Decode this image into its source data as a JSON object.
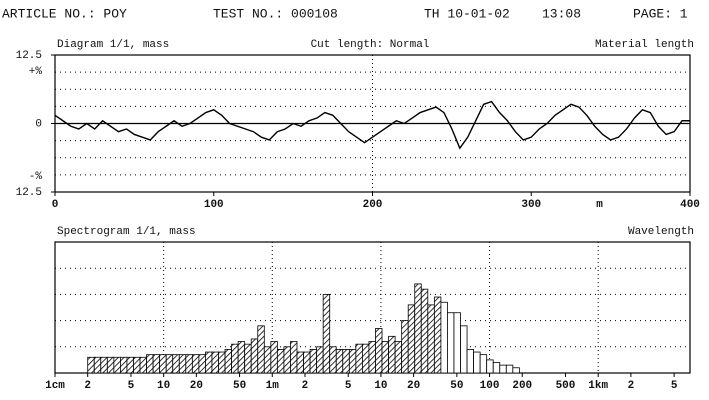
{
  "header": {
    "article": "ARTICLE NO.: POY",
    "test": "TEST NO.: 000108",
    "date": "TH 10-01-02",
    "time": "13:08",
    "page": "PAGE: 1"
  },
  "chart_data": [
    {
      "type": "line",
      "title": "Diagram 1/1, mass",
      "subtitle": "Cut length: Normal",
      "xlabel": "Material length",
      "xunit": "m",
      "ylabel_pos": "+%",
      "ylabel_neg": "-%",
      "color": "#000",
      "x": [
        0,
        5,
        10,
        15,
        20,
        25,
        30,
        35,
        40,
        45,
        50,
        55,
        60,
        65,
        70,
        75,
        80,
        85,
        90,
        95,
        100,
        105,
        110,
        115,
        120,
        125,
        130,
        135,
        140,
        145,
        150,
        155,
        160,
        165,
        170,
        175,
        180,
        185,
        190,
        195,
        200,
        205,
        210,
        215,
        220,
        225,
        230,
        235,
        240,
        245,
        250,
        255,
        260,
        265,
        270,
        275,
        280,
        285,
        290,
        295,
        300,
        305,
        310,
        315,
        320,
        325,
        330,
        335,
        340,
        345,
        350,
        355,
        360,
        365,
        370,
        375,
        380,
        385,
        390,
        395,
        400
      ],
      "values": [
        1.5,
        0.5,
        -0.5,
        -1,
        0,
        -1,
        0.5,
        -0.5,
        -1.5,
        -1,
        -2,
        -2.5,
        -3,
        -1.5,
        -0.5,
        0.5,
        -0.5,
        0,
        1,
        2,
        2.5,
        1.5,
        0,
        -0.5,
        -1,
        -1.5,
        -2.5,
        -3,
        -1.5,
        -1,
        0,
        -0.5,
        0.5,
        1,
        2,
        1.5,
        0,
        -1.5,
        -2.5,
        -3.5,
        -2.5,
        -1.5,
        -0.5,
        0.5,
        0,
        1,
        2,
        2.5,
        3,
        2,
        -1,
        -4.5,
        -2.5,
        0.5,
        3.5,
        4,
        2,
        0.5,
        -1.5,
        -3,
        -2.5,
        -1,
        0,
        1.5,
        2.5,
        3.5,
        3,
        1.5,
        -0.5,
        -2,
        -3,
        -2.5,
        -1,
        1,
        2.5,
        2,
        -0.5,
        -2,
        -1.5,
        0.5,
        0.5
      ],
      "xlim": [
        0,
        400
      ],
      "xticks": [
        0,
        100,
        200,
        300,
        400
      ],
      "xunit_pos": 343,
      "ylim": [
        -12.5,
        12.5
      ],
      "yticks": [
        12.5,
        0,
        {
          "value": -12.5,
          "label": "12.5"
        }
      ],
      "xgrid": [
        200
      ],
      "ygrid": [
        -9.375,
        -6.25,
        -3.125,
        3.125,
        6.25,
        9.375
      ],
      "zero_line": true
    },
    {
      "type": "histogram",
      "title": "Spectrogram 1/1, mass",
      "xlabel": "Wavelength",
      "xscale": "log",
      "color": "#000",
      "bins": [
        0.02,
        0.02297,
        0.02639,
        0.03031,
        0.03482,
        0.04,
        0.04595,
        0.05278,
        0.06063,
        0.06964,
        0.08,
        0.0919,
        0.1056,
        0.1213,
        0.1393,
        0.16,
        0.1838,
        0.2111,
        0.2425,
        0.2786,
        0.32,
        0.3676,
        0.4222,
        0.485,
        0.5571,
        0.64,
        0.7352,
        0.8445,
        0.9701,
        1.114,
        1.28,
        1.47,
        1.689,
        1.94,
        2.229,
        2.56,
        2.941,
        3.378,
        3.88,
        4.457,
        5.12,
        5.881,
        6.756,
        7.76,
        8.914,
        10.24,
        11.76,
        13.51,
        15.52,
        17.83,
        20.48,
        23.52,
        27.02,
        31.04,
        35.66,
        40.96,
        47.05,
        54.05,
        62.08,
        71.31,
        81.92,
        94.1,
        108.1,
        124.2,
        142.6,
        163.8,
        188.2
      ],
      "series": [
        {
          "pattern": "hatch",
          "values": [
            0.6,
            0.6,
            0.6,
            0.6,
            0.6,
            0.6,
            0.6,
            0.6,
            0.6,
            0.7,
            0.7,
            0.7,
            0.7,
            0.7,
            0.7,
            0.7,
            0.7,
            0.7,
            0.8,
            0.8,
            0.8,
            0.9,
            1.1,
            1.2,
            1.1,
            1.3,
            1.8,
            1.0,
            1.2,
            0.9,
            1.0,
            1.2,
            0.8,
            0.8,
            0.9,
            1.0,
            3.0,
            1.0,
            0.9,
            0.9,
            0.9,
            1.1,
            1.1,
            1.2,
            1.7,
            1.2,
            1.4,
            1.2,
            2.0,
            2.6,
            3.4,
            3.2,
            2.6,
            2.9,
            null,
            null,
            null,
            null,
            null,
            null,
            null,
            null,
            null,
            null,
            null,
            null
          ]
        },
        {
          "pattern": "none",
          "values": [
            null,
            null,
            null,
            null,
            null,
            null,
            null,
            null,
            null,
            null,
            null,
            null,
            null,
            null,
            null,
            null,
            null,
            null,
            null,
            null,
            null,
            null,
            null,
            null,
            null,
            null,
            null,
            null,
            null,
            null,
            null,
            null,
            null,
            null,
            null,
            null,
            null,
            null,
            null,
            null,
            null,
            null,
            null,
            null,
            null,
            null,
            null,
            null,
            null,
            null,
            null,
            null,
            null,
            null,
            2.7,
            2.3,
            2.3,
            1.8,
            0.9,
            0.8,
            0.7,
            0.5,
            0.4,
            0.3,
            0.3,
            0.2
          ]
        }
      ],
      "xlim": [
        0.01,
        7000
      ],
      "xticks": [
        {
          "value": 0.01,
          "label": "1cm"
        },
        {
          "value": 0.02,
          "label": "2"
        },
        {
          "value": 0.05,
          "label": "5"
        },
        {
          "value": 0.1,
          "label": "10"
        },
        {
          "value": 0.2,
          "label": "20"
        },
        {
          "value": 0.5,
          "label": "50"
        },
        {
          "value": 1,
          "label": "1m"
        },
        2,
        5,
        10,
        20,
        50,
        100,
        200,
        500,
        {
          "value": 1000,
          "label": "1km"
        },
        {
          "value": 2000,
          "label": "2"
        },
        {
          "value": 5000,
          "label": "5"
        }
      ],
      "ylim": [
        0,
        5
      ],
      "xgrid": [
        0.1,
        1,
        10,
        100,
        1000
      ],
      "ygrid": [
        1,
        2,
        3,
        4
      ]
    }
  ]
}
